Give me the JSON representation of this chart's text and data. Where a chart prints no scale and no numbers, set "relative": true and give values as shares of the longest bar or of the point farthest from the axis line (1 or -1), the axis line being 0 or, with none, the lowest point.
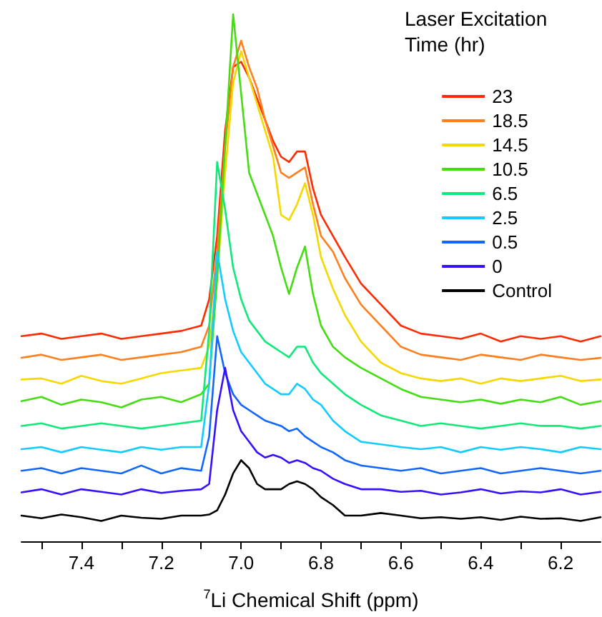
{
  "chart_data": {
    "type": "line",
    "relative": true,
    "xlabel": "$^{7}$Li Chemical Shift (ppm)",
    "legend_title": "Laser Excitation Time (hr)",
    "legend": "top right",
    "grid": false,
    "marker": "none",
    "line_style": "solid",
    "xlim": [
      7.55,
      6.1
    ],
    "xticks": [
      {
        "value": 7.5,
        "label": null
      },
      7.4,
      {
        "value": 7.3,
        "label": null
      },
      7.2,
      {
        "value": 7.1,
        "label": null
      },
      {
        "value": 7.0,
        "label": "7.0"
      },
      {
        "value": 6.9,
        "label": null
      },
      6.8,
      {
        "value": 6.7,
        "label": null
      },
      6.6,
      {
        "value": 6.5,
        "label": null
      },
      6.4,
      {
        "value": 6.3,
        "label": null
      },
      6.2
    ],
    "x": [
      7.55,
      7.5,
      7.45,
      7.4,
      7.35,
      7.3,
      7.25,
      7.2,
      7.15,
      7.1,
      7.08,
      7.06,
      7.04,
      7.02,
      7.0,
      6.98,
      6.96,
      6.94,
      6.92,
      6.9,
      6.88,
      6.86,
      6.84,
      6.82,
      6.8,
      6.77,
      6.74,
      6.7,
      6.65,
      6.6,
      6.55,
      6.5,
      6.45,
      6.4,
      6.35,
      6.3,
      6.25,
      6.2,
      6.15,
      6.1
    ],
    "series": [
      {
        "name": "23",
        "color": "#ff2a00",
        "values": [
          0.39,
          0.395,
          0.385,
          0.39,
          0.395,
          0.385,
          0.39,
          0.395,
          0.4,
          0.41,
          0.46,
          0.58,
          0.78,
          0.9,
          0.91,
          0.88,
          0.84,
          0.8,
          0.76,
          0.73,
          0.72,
          0.74,
          0.74,
          0.67,
          0.62,
          0.58,
          0.54,
          0.49,
          0.45,
          0.41,
          0.395,
          0.39,
          0.385,
          0.395,
          0.38,
          0.39,
          0.385,
          0.39,
          0.38,
          0.39
        ]
      },
      {
        "name": "18.5",
        "color": "#ff7f1e",
        "values": [
          0.349,
          0.355,
          0.345,
          0.35,
          0.355,
          0.345,
          0.35,
          0.355,
          0.36,
          0.37,
          0.41,
          0.55,
          0.75,
          0.9,
          0.95,
          0.9,
          0.86,
          0.8,
          0.75,
          0.7,
          0.69,
          0.7,
          0.71,
          0.64,
          0.58,
          0.55,
          0.5,
          0.45,
          0.41,
          0.37,
          0.355,
          0.35,
          0.345,
          0.355,
          0.35,
          0.345,
          0.355,
          0.35,
          0.345,
          0.349
        ]
      },
      {
        "name": "14.5",
        "color": "#f5d800",
        "values": [
          0.308,
          0.31,
          0.3,
          0.315,
          0.305,
          0.3,
          0.31,
          0.32,
          0.325,
          0.33,
          0.37,
          0.5,
          0.7,
          0.87,
          0.93,
          0.88,
          0.83,
          0.78,
          0.73,
          0.62,
          0.61,
          0.64,
          0.68,
          0.62,
          0.54,
          0.48,
          0.43,
          0.38,
          0.34,
          0.32,
          0.31,
          0.305,
          0.31,
          0.3,
          0.31,
          0.305,
          0.31,
          0.315,
          0.305,
          0.308
        ]
      },
      {
        "name": "10.5",
        "color": "#44dd11",
        "values": [
          0.267,
          0.275,
          0.26,
          0.27,
          0.265,
          0.255,
          0.27,
          0.275,
          0.265,
          0.28,
          0.3,
          0.5,
          0.75,
          1.0,
          0.85,
          0.7,
          0.66,
          0.62,
          0.58,
          0.52,
          0.47,
          0.52,
          0.56,
          0.47,
          0.41,
          0.37,
          0.35,
          0.33,
          0.31,
          0.29,
          0.275,
          0.27,
          0.265,
          0.27,
          0.262,
          0.27,
          0.265,
          0.275,
          0.26,
          0.267
        ]
      },
      {
        "name": "6.5",
        "color": "#11e87a",
        "values": [
          0.22,
          0.225,
          0.215,
          0.22,
          0.225,
          0.22,
          0.215,
          0.22,
          0.225,
          0.23,
          0.4,
          0.72,
          0.63,
          0.52,
          0.46,
          0.42,
          0.4,
          0.38,
          0.37,
          0.36,
          0.35,
          0.37,
          0.37,
          0.34,
          0.32,
          0.3,
          0.28,
          0.26,
          0.24,
          0.23,
          0.22,
          0.225,
          0.22,
          0.215,
          0.22,
          0.225,
          0.22,
          0.22,
          0.215,
          0.22
        ]
      },
      {
        "name": "2.5",
        "color": "#11ccff",
        "values": [
          0.176,
          0.18,
          0.17,
          0.18,
          0.175,
          0.17,
          0.18,
          0.175,
          0.18,
          0.18,
          0.3,
          0.55,
          0.46,
          0.4,
          0.36,
          0.34,
          0.32,
          0.3,
          0.29,
          0.28,
          0.28,
          0.3,
          0.29,
          0.27,
          0.26,
          0.23,
          0.21,
          0.19,
          0.185,
          0.18,
          0.176,
          0.18,
          0.17,
          0.18,
          0.175,
          0.18,
          0.176,
          0.17,
          0.18,
          0.176
        ]
      },
      {
        "name": "0.5",
        "color": "#1166ff",
        "values": [
          0.135,
          0.14,
          0.13,
          0.14,
          0.135,
          0.13,
          0.145,
          0.13,
          0.14,
          0.135,
          0.2,
          0.39,
          0.32,
          0.28,
          0.26,
          0.25,
          0.24,
          0.23,
          0.225,
          0.22,
          0.21,
          0.215,
          0.2,
          0.19,
          0.18,
          0.17,
          0.155,
          0.145,
          0.14,
          0.135,
          0.14,
          0.13,
          0.135,
          0.14,
          0.13,
          0.135,
          0.14,
          0.135,
          0.13,
          0.135
        ]
      },
      {
        "name": "0",
        "color": "#3311ff",
        "values": [
          0.094,
          0.1,
          0.09,
          0.1,
          0.095,
          0.09,
          0.1,
          0.093,
          0.097,
          0.1,
          0.11,
          0.25,
          0.33,
          0.25,
          0.21,
          0.19,
          0.17,
          0.16,
          0.165,
          0.16,
          0.15,
          0.155,
          0.15,
          0.14,
          0.135,
          0.12,
          0.11,
          0.1,
          0.1,
          0.095,
          0.097,
          0.09,
          0.094,
          0.1,
          0.092,
          0.096,
          0.094,
          0.1,
          0.09,
          0.095
        ]
      },
      {
        "name": "Control",
        "color": "#000000",
        "values": [
          0.05,
          0.045,
          0.052,
          0.047,
          0.04,
          0.05,
          0.046,
          0.044,
          0.05,
          0.05,
          0.052,
          0.06,
          0.09,
          0.13,
          0.155,
          0.14,
          0.11,
          0.1,
          0.1,
          0.1,
          0.11,
          0.115,
          0.11,
          0.1,
          0.085,
          0.07,
          0.05,
          0.05,
          0.055,
          0.05,
          0.045,
          0.047,
          0.044,
          0.047,
          0.042,
          0.048,
          0.044,
          0.045,
          0.04,
          0.047
        ]
      }
    ]
  }
}
